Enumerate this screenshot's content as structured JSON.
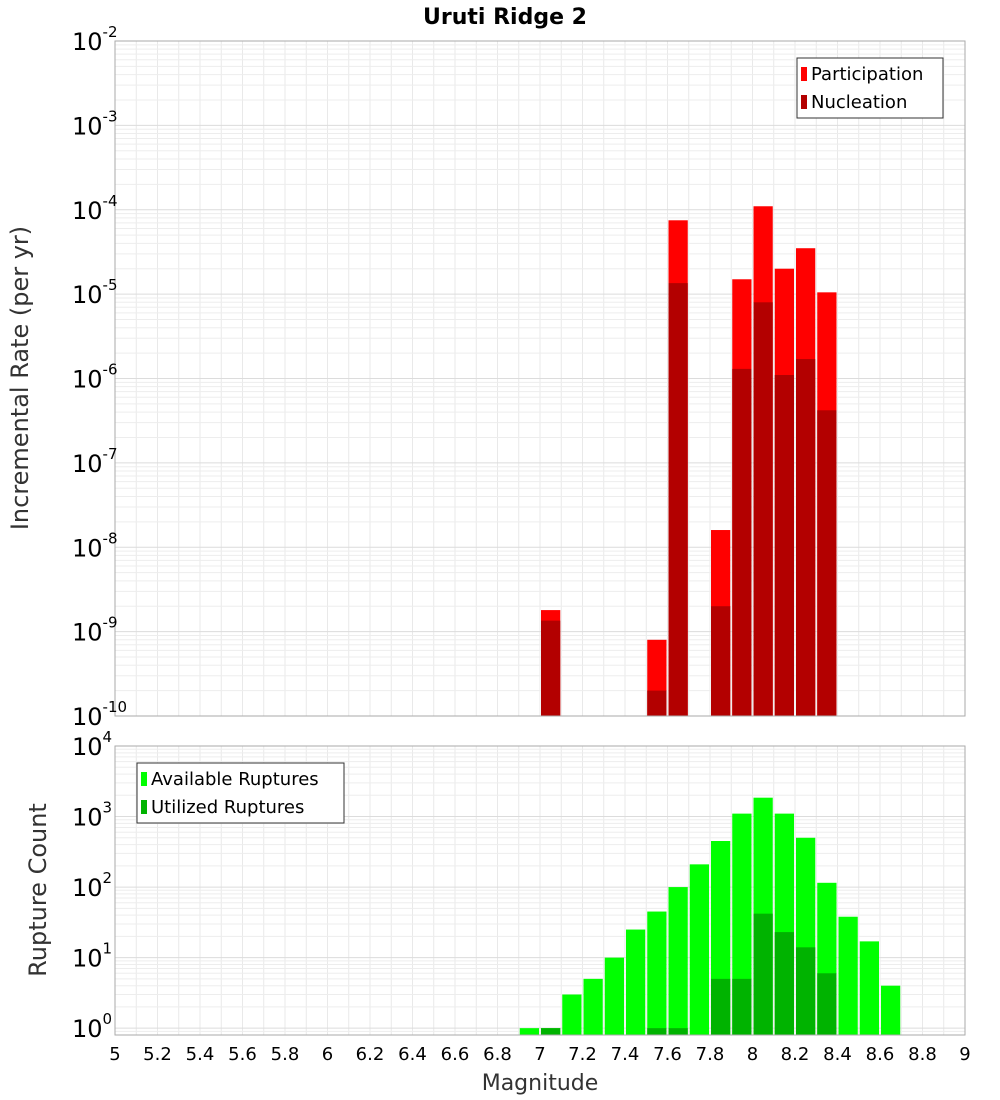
{
  "chart_data": [
    {
      "type": "bar",
      "title": "Uruti Ridge 2",
      "xlabel": "",
      "ylabel": "Incremental Rate (per yr)",
      "yscale": "log",
      "ylim": [
        1e-10,
        0.01
      ],
      "xlim": [
        5,
        9
      ],
      "bin_width": 0.1,
      "y_tick_labels": [
        {
          "value": 1e-10,
          "base": "10",
          "exp": "-10"
        },
        {
          "value": 1e-09,
          "base": "10",
          "exp": "-9"
        },
        {
          "value": 1e-08,
          "base": "10",
          "exp": "-8"
        },
        {
          "value": 1e-07,
          "base": "10",
          "exp": "-7"
        },
        {
          "value": 1e-06,
          "base": "10",
          "exp": "-6"
        },
        {
          "value": 1e-05,
          "base": "10",
          "exp": "-5"
        },
        {
          "value": 0.0001,
          "base": "10",
          "exp": "-4"
        },
        {
          "value": 0.001,
          "base": "10",
          "exp": "-3"
        },
        {
          "value": 0.01,
          "base": "10",
          "exp": "-2"
        }
      ],
      "legend_position": "top-right",
      "series": [
        {
          "name": "Participation",
          "color": "#ff0000",
          "x": [
            7.05,
            7.55,
            7.65,
            7.85,
            7.95,
            8.05,
            8.15,
            8.25,
            8.35
          ],
          "values": [
            1.8e-09,
            8e-10,
            7.5e-05,
            1.6e-08,
            1.5e-05,
            0.00011,
            2e-05,
            3.5e-05,
            1.05e-05
          ]
        },
        {
          "name": "Nucleation",
          "color": "#b30000",
          "x": [
            7.05,
            7.55,
            7.65,
            7.85,
            7.95,
            8.05,
            8.15,
            8.25,
            8.35
          ],
          "values": [
            1.35e-09,
            2e-10,
            1.35e-05,
            2e-09,
            1.3e-06,
            8e-06,
            1.1e-06,
            1.7e-06,
            4.2e-07
          ]
        }
      ]
    },
    {
      "type": "bar",
      "title": "",
      "xlabel": "Magnitude",
      "ylabel": "Rupture Count",
      "yscale": "log",
      "ylim": [
        0.8,
        10000
      ],
      "xlim": [
        5,
        9
      ],
      "bin_width": 0.1,
      "x_tick_labels": [
        "5",
        "5.2",
        "5.4",
        "5.6",
        "5.8",
        "6",
        "6.2",
        "6.4",
        "6.6",
        "6.8",
        "7",
        "7.2",
        "7.4",
        "7.6",
        "7.8",
        "8",
        "8.2",
        "8.4",
        "8.6",
        "8.8",
        "9"
      ],
      "y_tick_labels": [
        {
          "value": 1,
          "base": "10",
          "exp": "0"
        },
        {
          "value": 10,
          "base": "10",
          "exp": "1"
        },
        {
          "value": 100,
          "base": "10",
          "exp": "2"
        },
        {
          "value": 1000,
          "base": "10",
          "exp": "3"
        },
        {
          "value": 10000,
          "base": "10",
          "exp": "4"
        }
      ],
      "legend_position": "top-left",
      "series": [
        {
          "name": "Available Ruptures",
          "color": "#00ff00",
          "x": [
            6.95,
            7.05,
            7.15,
            7.25,
            7.35,
            7.45,
            7.55,
            7.65,
            7.75,
            7.85,
            7.95,
            8.05,
            8.15,
            8.25,
            8.35,
            8.45,
            8.55,
            8.65
          ],
          "values": [
            1,
            1,
            3,
            5,
            10,
            25,
            45,
            100,
            210,
            450,
            1100,
            1850,
            1100,
            500,
            115,
            38,
            17,
            4
          ]
        },
        {
          "name": "Utilized Ruptures",
          "color": "#00b300",
          "x": [
            7.05,
            7.55,
            7.65,
            7.85,
            7.95,
            8.05,
            8.15,
            8.25,
            8.35
          ],
          "values": [
            1,
            1,
            1,
            5,
            5,
            42,
            23,
            14,
            6
          ]
        }
      ]
    }
  ]
}
